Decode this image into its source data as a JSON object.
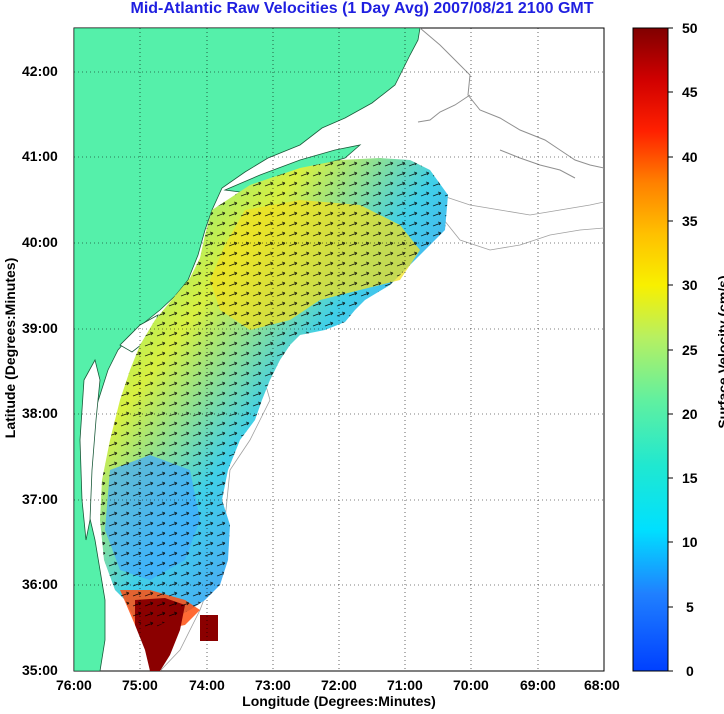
{
  "title": "Mid-Atlantic Raw Velocities (1 Day Avg) 2007/08/21 2100 GMT",
  "xlabel": "Longitude (Degrees:Minutes)",
  "ylabel": "Latitude (Degrees:Minutes)",
  "colorbar_label": "Surface Velocity (cm/s)",
  "x_ticks": [
    "76:00",
    "75:00",
    "74:00",
    "73:00",
    "72:00",
    "71:00",
    "70:00",
    "69:00",
    "68:00"
  ],
  "y_ticks": [
    "42:00",
    "41:00",
    "40:00",
    "39:00",
    "38:00",
    "37:00",
    "36:00",
    "35:00"
  ],
  "colorbar_ticks": [
    "50",
    "45",
    "40",
    "35",
    "30",
    "25",
    "20",
    "15",
    "10",
    "5",
    "0"
  ],
  "colors": {
    "land": "#55f0aa",
    "title": "#1f1fe0",
    "coast": "#808080"
  }
}
